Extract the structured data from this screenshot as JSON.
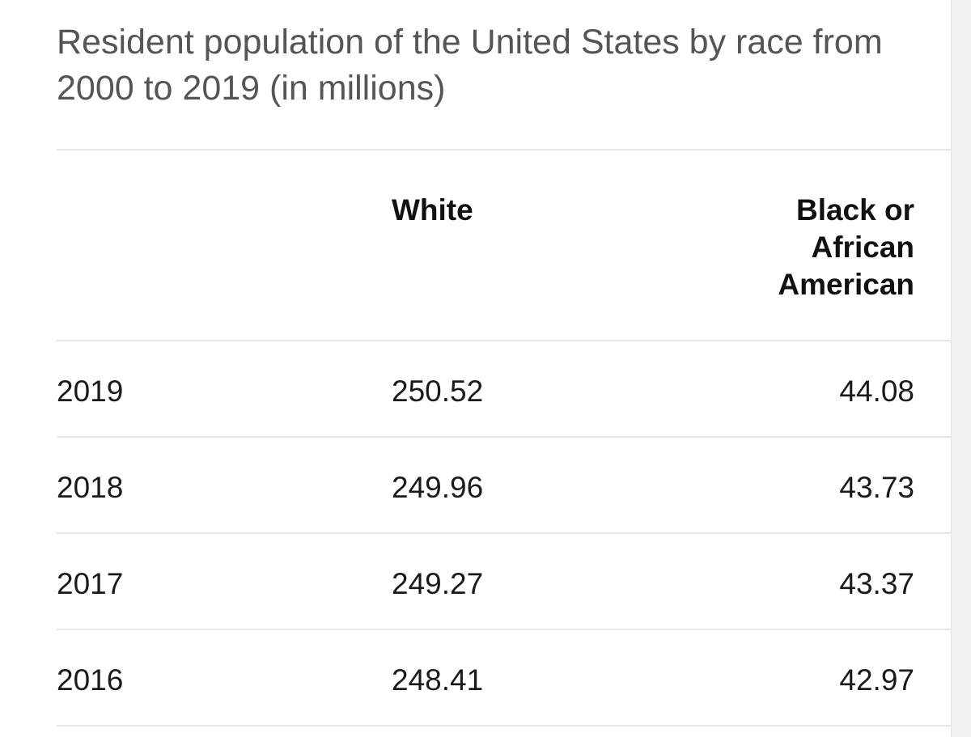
{
  "title": "Resident population of the United States by race from 2000 to 2019 (in millions)",
  "chart_data": {
    "type": "table",
    "title": "Resident population of the United States by race from 2000 to 2019 (in millions)",
    "columns": [
      "",
      "White",
      "Black or African American"
    ],
    "header": {
      "year": "",
      "white": "White",
      "black": "Black or African American"
    },
    "rows": [
      {
        "year": "2019",
        "white": "250.52",
        "black": "44.08"
      },
      {
        "year": "2018",
        "white": "249.96",
        "black": "43.73"
      },
      {
        "year": "2017",
        "white": "249.27",
        "black": "43.37"
      },
      {
        "year": "2016",
        "white": "248.41",
        "black": "42.97"
      }
    ]
  }
}
